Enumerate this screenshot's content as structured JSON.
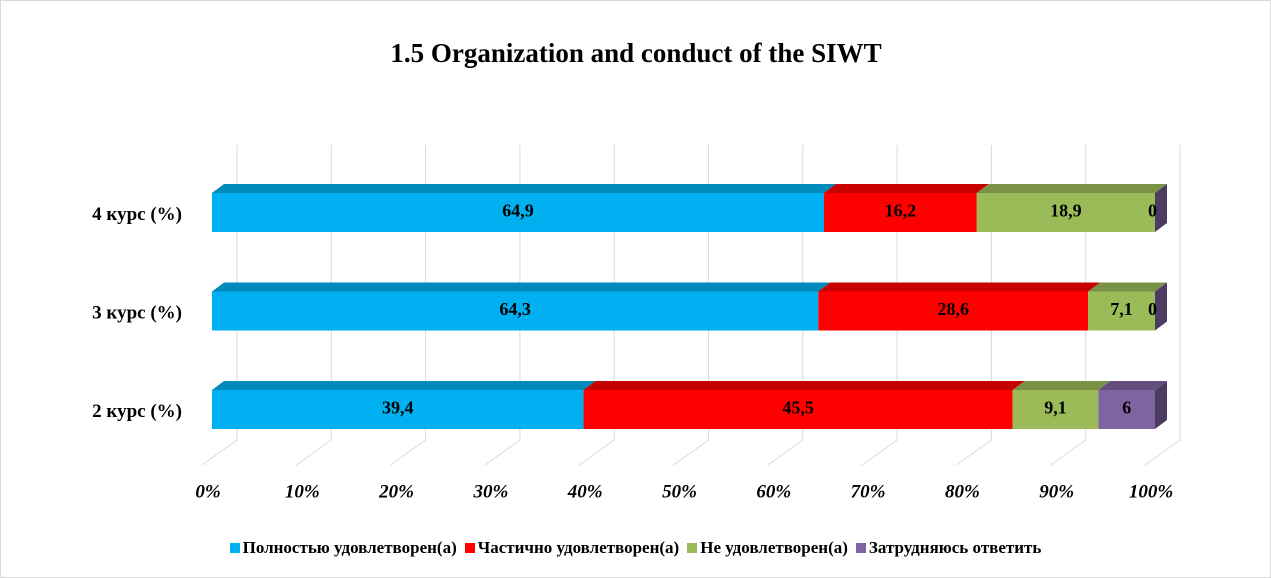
{
  "chart_data": {
    "type": "stacked_bar_horizontal",
    "title": "1.5 Organization and conduct of the SIWT",
    "categories": [
      "2 курс (%)",
      "3 курс (%)",
      "4 курс (%)"
    ],
    "series": [
      {
        "name": "Полностью удовлетворен(а)",
        "color": "#00b0f0",
        "values": [
          39.4,
          64.3,
          64.9
        ],
        "value_labels": [
          "39,4",
          "64,3",
          "64,9"
        ]
      },
      {
        "name": "Частично удовлетворен(а)",
        "color": "#ff0000",
        "values": [
          45.5,
          28.6,
          16.2
        ],
        "value_labels": [
          "45,5",
          "28,6",
          "16,2"
        ]
      },
      {
        "name": "Не удовлетворен(а)",
        "color": "#9bbb59",
        "values": [
          9.1,
          7.1,
          18.9
        ],
        "value_labels": [
          "9,1",
          "7,1",
          "18,9"
        ]
      },
      {
        "name": "Затрудняюсь ответить",
        "color": "#8064a2",
        "values": [
          6,
          0,
          0
        ],
        "value_labels": [
          "6",
          "0",
          "0"
        ]
      }
    ],
    "xlim": [
      0,
      100
    ],
    "xticks": [
      {
        "value": 0,
        "label": "0%"
      },
      {
        "value": 10,
        "label": "10%"
      },
      {
        "value": 20,
        "label": "20%"
      },
      {
        "value": 30,
        "label": "30%"
      },
      {
        "value": 40,
        "label": "40%"
      },
      {
        "value": 50,
        "label": "50%"
      },
      {
        "value": 60,
        "label": "60%"
      },
      {
        "value": 70,
        "label": "70%"
      },
      {
        "value": 80,
        "label": "80%"
      },
      {
        "value": 90,
        "label": "90%"
      },
      {
        "value": 100,
        "label": "100%"
      }
    ],
    "grid": true,
    "legend": "bottom"
  }
}
